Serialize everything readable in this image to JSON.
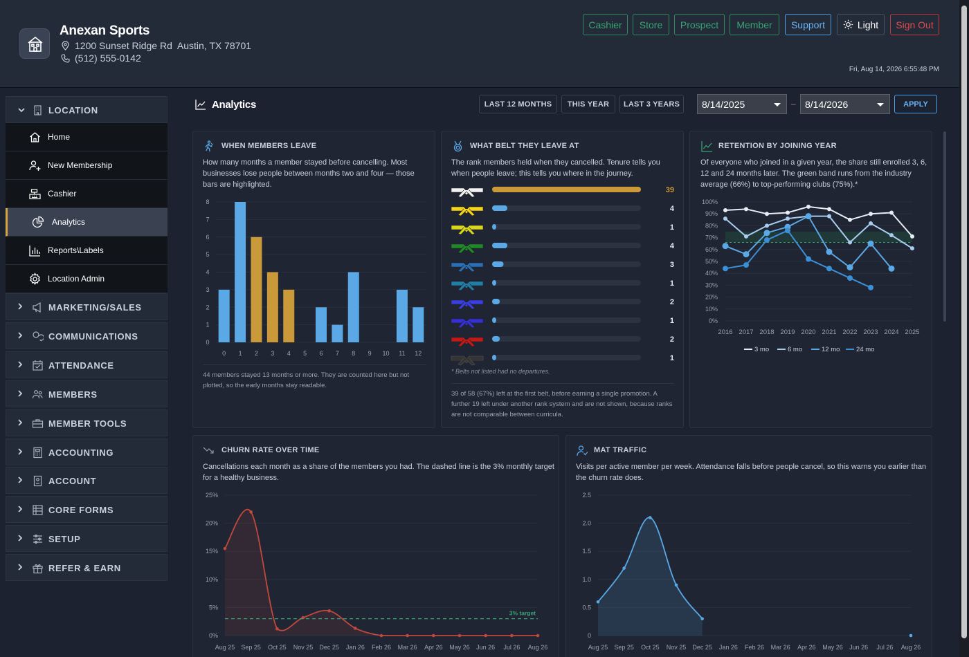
{
  "header": {
    "business_name": "Anexan Sports",
    "address": "1200 Sunset Ridge Rd  Austin, TX 78701",
    "phone": "(512) 555-0142",
    "datetime": "Fri, Aug 14, 2026 6:55:48 PM",
    "buttons": {
      "cashier": "Cashier",
      "store": "Store",
      "prospect": "Prospect",
      "member": "Member",
      "support": "Support",
      "light": "Light",
      "signout": "Sign Out"
    }
  },
  "sidebar": {
    "location": {
      "title": "LOCATION",
      "items": [
        "Home",
        "New Membership",
        "Cashier",
        "Analytics",
        "Reports\\Labels",
        "Location Admin"
      ],
      "active": "Analytics"
    },
    "sections": [
      "MARKETING/SALES",
      "COMMUNICATIONS",
      "ATTENDANCE",
      "MEMBERS",
      "MEMBER TOOLS",
      "ACCOUNTING",
      "ACCOUNT",
      "CORE FORMS",
      "SETUP",
      "REFER & EARN"
    ]
  },
  "analytics": {
    "title": "Analytics",
    "ranges": [
      "LAST 12 MONTHS",
      "THIS YEAR",
      "LAST 3 YEARS"
    ],
    "date_from": "8/14/2025",
    "date_sep": "–",
    "date_to": "8/14/2026",
    "apply": "APPLY"
  },
  "cards": {
    "leave": {
      "title": "WHEN MEMBERS LEAVE",
      "desc": "How many months a member stayed before cancelling. Most businesses lose people between months two and four — those bars are highlighted.",
      "note": "44 members stayed 13 months or more. They are counted here but not plotted, so the early months stay readable."
    },
    "belt": {
      "title": "WHAT BELT THEY LEAVE AT",
      "desc": "The rank members held when they cancelled. Tenure tells you when people leave; this tells you where in the journey.",
      "footnote": "* Belts not listed had no departures.",
      "note": "39 of 58 (67%) left at the first belt, before earning a single promotion. A further 19 left under another rank system and are not shown, because ranks are not comparable between curricula."
    },
    "retention": {
      "title": "RETENTION BY JOINING YEAR",
      "desc": "Of everyone who joined in a given year, the share still enrolled 3, 6, 12 and 24 months later. The green band runs from the industry average (66%) to top-performing clubs (75%).*"
    },
    "churn": {
      "title": "CHURN RATE OVER TIME",
      "desc": "Cancellations each month as a share of the members you had. The dashed line is the 3% monthly target for a healthy business."
    },
    "mat": {
      "title": "MAT TRAFFIC",
      "desc": "Visits per active member per week. Attendance falls before people cancel, so this warns you earlier than the churn rate does."
    }
  },
  "chart_data": [
    {
      "type": "bar",
      "title": "WHEN MEMBERS LEAVE",
      "categories": [
        "0",
        "1",
        "2",
        "3",
        "4",
        "5",
        "6",
        "7",
        "8",
        "9",
        "10",
        "11",
        "12"
      ],
      "values": [
        3,
        8,
        6,
        4,
        3,
        0,
        2,
        1,
        4,
        0,
        0,
        3,
        2
      ],
      "highlighted": [
        "2",
        "3",
        "4"
      ],
      "ylim": [
        0,
        8
      ],
      "colors": {
        "normal": "#5aa9e6",
        "highlight": "#c9993a"
      }
    },
    {
      "type": "bar",
      "title": "WHAT BELT THEY LEAVE AT",
      "orientation": "horizontal",
      "categories": [
        "white",
        "yellow",
        "yellow-green",
        "green",
        "green-blue",
        "blue-green",
        "blue",
        "blue-red",
        "red",
        "black"
      ],
      "belt_colors": [
        "#f2f2f2",
        "#f5d31a",
        "#d8d51a",
        "#1f8a2a",
        "#2a6fb5",
        "#1e7fa8",
        "#3a3ee0",
        "#3430d6",
        "#c41818",
        "#333333"
      ],
      "values": [
        39,
        4,
        1,
        4,
        3,
        1,
        2,
        1,
        2,
        1
      ],
      "xlim": [
        0,
        39
      ]
    },
    {
      "type": "line",
      "title": "RETENTION BY JOINING YEAR",
      "x": [
        "2016",
        "2017",
        "2018",
        "2019",
        "2020",
        "2021",
        "2022",
        "2023",
        "2024",
        "2025"
      ],
      "ylim": [
        0,
        100
      ],
      "yticks": [
        "0%",
        "10%",
        "20%",
        "30%",
        "40%",
        "50%",
        "60%",
        "70%",
        "80%",
        "90%",
        "100%"
      ],
      "band": [
        66,
        75
      ],
      "series": [
        {
          "name": "3 mo",
          "color": "#e6edf5",
          "values": [
            93,
            94,
            90,
            91,
            96,
            94,
            85,
            90,
            91,
            71
          ]
        },
        {
          "name": "6 mo",
          "color": "#a9cdef",
          "values": [
            86,
            71,
            80,
            86,
            88,
            88,
            66,
            82,
            72,
            61
          ]
        },
        {
          "name": "12 mo",
          "color": "#5aa9e6",
          "values": [
            63,
            56,
            74,
            79,
            88,
            58,
            45,
            65,
            44,
            null
          ]
        },
        {
          "name": "24 mo",
          "color": "#3b8fd6",
          "values": [
            44,
            47,
            68,
            76,
            52,
            44,
            36,
            28,
            null,
            null
          ]
        }
      ]
    },
    {
      "type": "area",
      "title": "CHURN RATE OVER TIME",
      "x": [
        "Aug 25",
        "Sep 25",
        "Oct 25",
        "Nov 25",
        "Dec 25",
        "Jan 26",
        "Feb 26",
        "Mar 26",
        "Apr 26",
        "May 26",
        "Jun 26",
        "Jul 26",
        "Aug 26"
      ],
      "values": [
        15.5,
        22,
        1.2,
        3.2,
        4.4,
        1.3,
        0,
        0,
        0,
        0,
        0,
        0,
        0
      ],
      "ylim": [
        0,
        25
      ],
      "yticks": [
        "0%",
        "5%",
        "10%",
        "15%",
        "20%",
        "25%"
      ],
      "target": 3,
      "target_label": "3% target",
      "color": "#c0493e"
    },
    {
      "type": "area",
      "title": "MAT TRAFFIC",
      "x": [
        "Aug 25",
        "Sep 25",
        "Oct 25",
        "Nov 25",
        "Dec 25",
        "Jan 26",
        "Feb 26",
        "Mar 26",
        "Apr 26",
        "May 26",
        "Jun 26",
        "Jul 26",
        "Aug 26"
      ],
      "values": [
        0.6,
        1.2,
        2.1,
        0.9,
        0.3,
        null,
        null,
        null,
        null,
        null,
        null,
        null,
        0
      ],
      "ylim": [
        0,
        2.5
      ],
      "yticks": [
        "0",
        "0.5",
        "1.0",
        "1.5",
        "2.0",
        "2.5"
      ],
      "color": "#5aa9e6"
    }
  ]
}
